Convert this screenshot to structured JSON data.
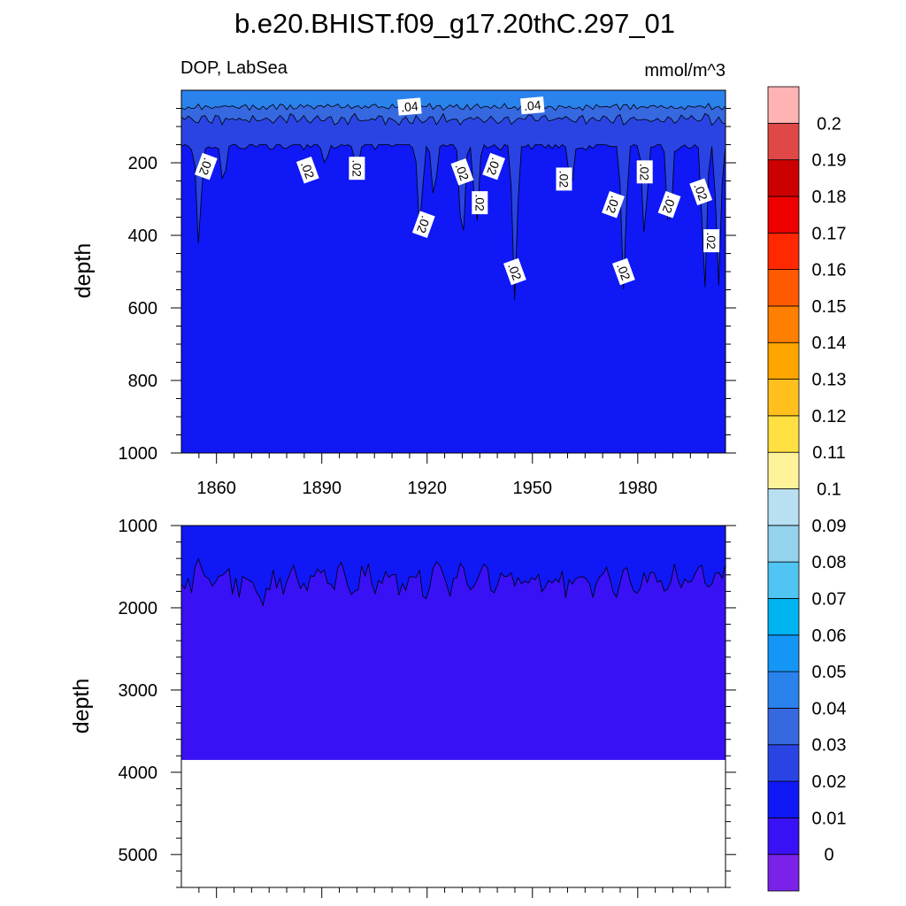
{
  "chart_data": {
    "type": "contour",
    "title": "b.e20.BHIST.f09_g17.20thC.297_01",
    "variable_label": "DOP, LabSea",
    "units_label": "mmol/m^3",
    "ylabel": "depth",
    "x_ticks": [
      "1860",
      "1890",
      "1920",
      "1950",
      "1980"
    ],
    "x_tick_values": [
      1860,
      1890,
      1920,
      1950,
      1980
    ],
    "xlim": [
      1850,
      2005
    ],
    "top_panel": {
      "ylim": [
        0,
        1000
      ],
      "y_ticks": [
        "200",
        "400",
        "600",
        "800",
        "1000"
      ],
      "y_tick_values": [
        200,
        400,
        600,
        800,
        1000
      ]
    },
    "bottom_panel": {
      "ylim": [
        1000,
        5400
      ],
      "y_ticks": [
        "1000",
        "2000",
        "3000",
        "4000",
        "5000"
      ],
      "y_tick_values": [
        1000,
        2000,
        3000,
        4000,
        5000
      ],
      "ocean_floor_depth": 3850
    },
    "contour_labels": [
      {
        "text": ".04",
        "year": 1915,
        "depth": 45
      },
      {
        "text": ".04",
        "year": 1950,
        "depth": 42
      },
      {
        "text": ".02",
        "year": 1857,
        "depth": 210
      },
      {
        "text": ".02",
        "year": 1886,
        "depth": 220
      },
      {
        "text": ".02",
        "year": 1900,
        "depth": 215
      },
      {
        "text": ".02",
        "year": 1919,
        "depth": 370
      },
      {
        "text": ".02",
        "year": 1930,
        "depth": 225
      },
      {
        "text": ".02",
        "year": 1935,
        "depth": 310
      },
      {
        "text": ".02",
        "year": 1939,
        "depth": 210
      },
      {
        "text": ".02",
        "year": 1945,
        "depth": 500
      },
      {
        "text": ".02",
        "year": 1959,
        "depth": 245
      },
      {
        "text": ".02",
        "year": 1973,
        "depth": 315
      },
      {
        "text": ".02",
        "year": 1976,
        "depth": 500
      },
      {
        "text": ".02",
        "year": 1982,
        "depth": 225
      },
      {
        "text": ".02",
        "year": 1989,
        "depth": 315
      },
      {
        "text": ".02",
        "year": 1998,
        "depth": 280
      },
      {
        "text": ".02",
        "year": 2001,
        "depth": 415
      }
    ],
    "colorbar": {
      "colors": [
        "#7a22e8",
        "#3a10f5",
        "#0f18f5",
        "#2a44e4",
        "#3668e0",
        "#2a82ec",
        "#1496f6",
        "#00b4f2",
        "#50c4f2",
        "#94d2ee",
        "#b8e0f2",
        "#fff39a",
        "#ffe040",
        "#ffc01e",
        "#ffa500",
        "#ff7f00",
        "#ff5a00",
        "#ff2800",
        "#ee0000",
        "#cc0000",
        "#e04848",
        "#ffb3b3"
      ],
      "labels": [
        "0",
        "0.01",
        "0.02",
        "0.03",
        "0.04",
        "0.05",
        "0.06",
        "0.07",
        "0.08",
        "0.09",
        "0.1",
        "0.11",
        "0.12",
        "0.13",
        "0.14",
        "0.15",
        "0.16",
        "0.17",
        "0.18",
        "0.19",
        "0.2"
      ]
    }
  }
}
